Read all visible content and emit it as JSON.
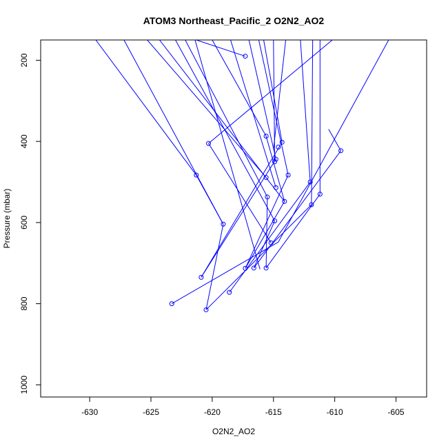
{
  "chart_data": {
    "type": "line",
    "title": "ATOM3 Northeast_Pacific_2 O2N2_AO2",
    "xlabel": "O2N2_AO2",
    "ylabel": "Pressure (mbar)",
    "xlim": [
      -634,
      -602.5
    ],
    "ylim": [
      1030,
      150
    ],
    "y_inverted": true,
    "xticks": [
      -630,
      -625,
      -620,
      -615,
      -610,
      -605
    ],
    "yticks": [
      200,
      400,
      600,
      800,
      1000
    ],
    "grid": false,
    "legend": "none",
    "series_color": "#0000ff",
    "segments": [
      [
        [
          -629.5,
          150
        ],
        [
          -621.3,
          483
        ]
      ],
      [
        [
          -627.2,
          150
        ],
        [
          -619.1,
          604
        ]
      ],
      [
        [
          -625.3,
          150
        ],
        [
          -615.6,
          489
        ]
      ],
      [
        [
          -624.3,
          150
        ],
        [
          -614.1,
          548
        ]
      ],
      [
        [
          -623.0,
          150
        ],
        [
          -614.9,
          596
        ]
      ],
      [
        [
          -622.2,
          150
        ],
        [
          -615.5,
          537
        ]
      ],
      [
        [
          -621.4,
          150
        ],
        [
          -616.1,
          715
        ]
      ],
      [
        [
          -621.3,
          150
        ],
        [
          -617.3,
          190
        ]
      ],
      [
        [
          -620.0,
          150
        ],
        [
          -615.6,
          387
        ]
      ],
      [
        [
          -618.5,
          150
        ],
        [
          -614.8,
          514
        ]
      ],
      [
        [
          -617.0,
          150
        ],
        [
          -614.8,
          444
        ]
      ],
      [
        [
          -616.2,
          150
        ],
        [
          -613.8,
          483
        ]
      ],
      [
        [
          -615.8,
          150
        ],
        [
          -614.3,
          402
        ]
      ],
      [
        [
          -615.0,
          150
        ],
        [
          -614.9,
          450
        ]
      ],
      [
        [
          -614.0,
          150
        ],
        [
          -615.0,
          420
        ]
      ],
      [
        [
          -612.8,
          150
        ],
        [
          -612.0,
          500
        ]
      ],
      [
        [
          -611.8,
          150
        ],
        [
          -611.9,
          556
        ]
      ],
      [
        [
          -611.2,
          150
        ],
        [
          -611.2,
          530
        ]
      ],
      [
        [
          -610.2,
          150
        ],
        [
          -620.3,
          405
        ]
      ],
      [
        [
          -605.6,
          150
        ],
        [
          -614.6,
          648
        ]
      ],
      [
        [
          -621.3,
          483
        ],
        [
          -619.1,
          604
        ]
      ],
      [
        [
          -620.3,
          405
        ],
        [
          -615.2,
          650
        ]
      ],
      [
        [
          -619.1,
          604
        ],
        [
          -620.5,
          815
        ]
      ],
      [
        [
          -614.6,
          648
        ],
        [
          -623.3,
          800
        ]
      ],
      [
        [
          -614.3,
          402
        ],
        [
          -620.9,
          735
        ]
      ],
      [
        [
          -614.8,
          444
        ],
        [
          -620.9,
          735
        ]
      ],
      [
        [
          -613.8,
          483
        ],
        [
          -617.3,
          713
        ]
      ],
      [
        [
          -612.0,
          500
        ],
        [
          -618.6,
          772
        ]
      ],
      [
        [
          -609.5,
          423
        ],
        [
          -616.6,
          712
        ]
      ],
      [
        [
          -611.2,
          530
        ],
        [
          -615.6,
          712
        ]
      ],
      [
        [
          -611.9,
          556
        ],
        [
          -620.5,
          815
        ]
      ],
      [
        [
          -615.5,
          537
        ],
        [
          -615.6,
          712
        ]
      ],
      [
        [
          -614.9,
          596
        ],
        [
          -616.6,
          712
        ]
      ],
      [
        [
          -614.1,
          548
        ],
        [
          -617.3,
          713
        ]
      ],
      [
        [
          -615.6,
          387
        ],
        [
          -614.1,
          548
        ]
      ],
      [
        [
          -609.5,
          423
        ],
        [
          -610.5,
          370
        ]
      ]
    ],
    "points": [
      [
        -617.3,
        190
      ],
      [
        -615.6,
        387
      ],
      [
        -614.3,
        402
      ],
      [
        -614.6,
        414
      ],
      [
        -620.3,
        405
      ],
      [
        -609.5,
        423
      ],
      [
        -614.8,
        444
      ],
      [
        -614.9,
        450
      ],
      [
        -621.3,
        483
      ],
      [
        -615.6,
        489
      ],
      [
        -613.8,
        483
      ],
      [
        -612.0,
        500
      ],
      [
        -614.8,
        514
      ],
      [
        -611.2,
        530
      ],
      [
        -615.5,
        537
      ],
      [
        -614.1,
        548
      ],
      [
        -611.9,
        556
      ],
      [
        -614.9,
        596
      ],
      [
        -619.1,
        604
      ],
      [
        -615.2,
        650
      ],
      [
        -617.3,
        713
      ],
      [
        -616.6,
        712
      ],
      [
        -615.6,
        712
      ],
      [
        -620.9,
        735
      ],
      [
        -618.6,
        772
      ],
      [
        -623.3,
        800
      ],
      [
        -620.5,
        815
      ]
    ]
  }
}
